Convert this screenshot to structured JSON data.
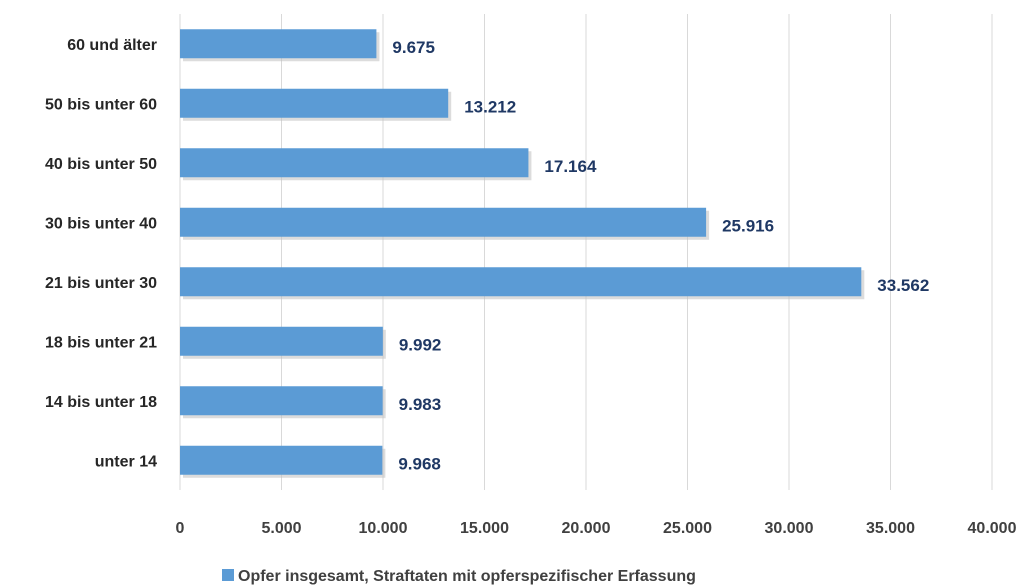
{
  "chart_data": {
    "type": "bar",
    "orientation": "horizontal",
    "categories": [
      "unter 14",
      "14 bis unter 18",
      "18 bis unter 21",
      "21 bis unter 30",
      "30 bis unter 40",
      "40 bis unter 50",
      "50 bis unter 60",
      "60 und älter"
    ],
    "series": [
      {
        "name": "Opfer insgesamt, Straftaten mit opferspezifischer Erfassung",
        "values": [
          9968,
          9983,
          9992,
          33562,
          25916,
          17164,
          13212,
          9675
        ],
        "data_labels": [
          "9.968",
          "9.983",
          "9.992",
          "33.562",
          "25.916",
          "17.164",
          "13.212",
          "9.675"
        ],
        "color": "#5b9bd5"
      }
    ],
    "xlim": [
      0,
      40000
    ],
    "x_ticks": [
      0,
      5000,
      10000,
      15000,
      20000,
      25000,
      30000,
      35000,
      40000
    ],
    "x_tick_labels": [
      "0",
      "5.000",
      "10.000",
      "15.000",
      "20.000",
      "25.000",
      "30.000",
      "35.000",
      "40.000"
    ],
    "grid": "vertical",
    "legend_position": "bottom",
    "title": "",
    "xlabel": "",
    "ylabel": "",
    "label_color": "#1f3864",
    "grid_color": "#d9d9d9"
  }
}
